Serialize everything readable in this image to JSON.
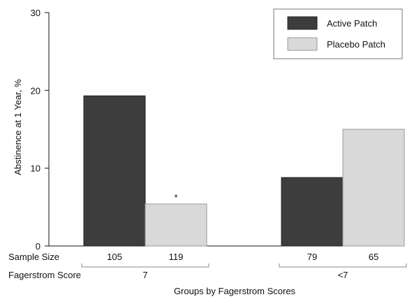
{
  "chart_data": {
    "type": "bar",
    "ylabel": "Abstinence at 1 Year, %",
    "xlabel": "Groups by Fagerstrom Scores",
    "ylim": [
      0,
      30
    ],
    "yticks": [
      0,
      10,
      20,
      30
    ],
    "grid": false,
    "legend_position": "top-right",
    "categories": [
      "7",
      "<7"
    ],
    "series": [
      {
        "name": "Active Patch",
        "color": "#3d3d3d",
        "values": [
          19.3,
          8.8
        ],
        "sample_sizes": [
          "105",
          "79"
        ]
      },
      {
        "name": "Placebo Patch",
        "color": "#d9d9d9",
        "values": [
          5.4,
          15.0
        ],
        "sample_sizes": [
          "119",
          "65"
        ]
      }
    ],
    "annotations": [
      {
        "text": "*",
        "category": "7",
        "series": "Placebo Patch"
      }
    ],
    "sample_size_label": "Sample Size",
    "group_row_label": "Fagerstrom Score"
  }
}
